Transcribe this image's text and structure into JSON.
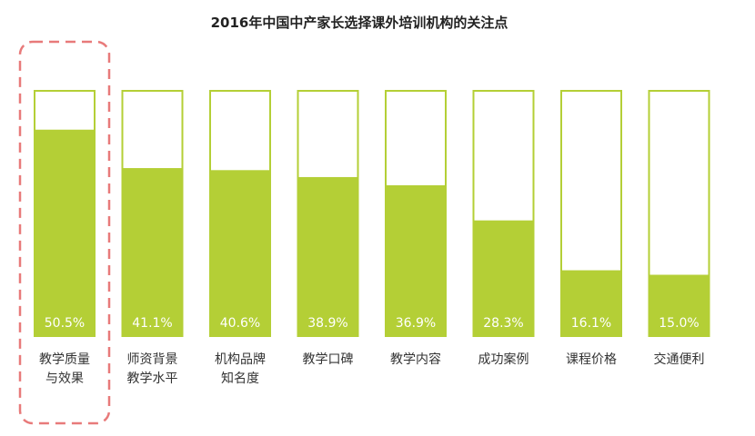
{
  "chart_data": {
    "type": "bar",
    "title": "2016年中国中产家长选择课外培训机构的关注点",
    "categories": [
      [
        "教学质量",
        "与效果"
      ],
      [
        "师资背景",
        "教学水平"
      ],
      [
        "机构品牌",
        "知名度"
      ],
      [
        "教学口碑"
      ],
      [
        "教学内容"
      ],
      [
        "成功案例"
      ],
      [
        "课程价格"
      ],
      [
        "交通便利"
      ]
    ],
    "values": [
      50.5,
      41.1,
      40.6,
      38.9,
      36.9,
      28.3,
      16.1,
      15.0
    ],
    "value_labels": [
      "50.5%",
      "41.1%",
      "40.6%",
      "38.9%",
      "36.9%",
      "28.3%",
      "16.1%",
      "15.0%"
    ],
    "unit": "%",
    "ylim": [
      0,
      60
    ],
    "highlighted_category_index": 0,
    "colors": {
      "bar_fill": "#b4cf36",
      "bar_outline": "#b4cf36",
      "highlight_box": "#e87a7a",
      "value_text": "#ffffff",
      "category_text": "#333333"
    }
  }
}
